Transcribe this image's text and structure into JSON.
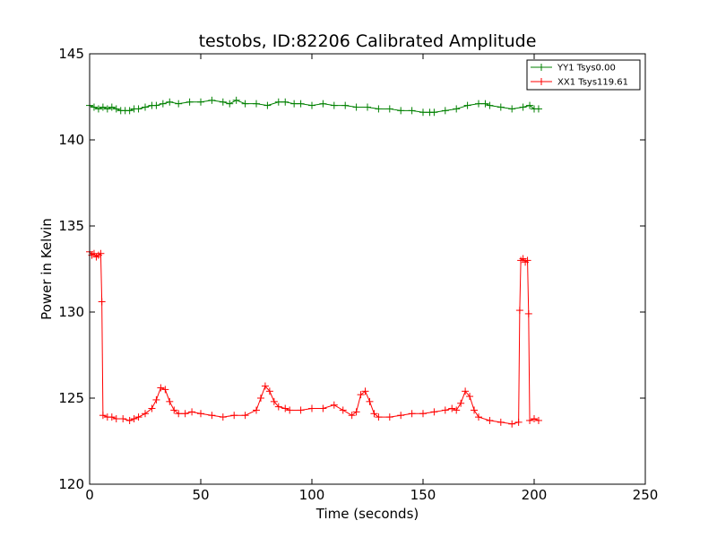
{
  "chart_data": {
    "type": "line",
    "title": "testobs, ID:82206 Calibrated Amplitude",
    "xlabel": "Time (seconds)",
    "ylabel": "Power in Kelvin",
    "xlim": [
      0,
      250
    ],
    "ylim": [
      120,
      145
    ],
    "xticks": [
      "0",
      "50",
      "100",
      "150",
      "200",
      "250"
    ],
    "yticks": [
      "120",
      "125",
      "130",
      "135",
      "140",
      "145"
    ],
    "grid": false,
    "legend_position": "top-right",
    "markers": "+",
    "series": [
      {
        "name": "YY1 Tsys0.00",
        "color": "#008000",
        "x": [
          0,
          2,
          4,
          6,
          8,
          10,
          12,
          14,
          16,
          18,
          20,
          22,
          25,
          28,
          30,
          33,
          36,
          40,
          45,
          50,
          55,
          60,
          63,
          66,
          70,
          75,
          80,
          85,
          88,
          92,
          95,
          100,
          105,
          110,
          115,
          120,
          125,
          130,
          135,
          140,
          145,
          150,
          153,
          155,
          160,
          165,
          170,
          175,
          178,
          180,
          185,
          190,
          195,
          198,
          200,
          202
        ],
        "values": [
          142.0,
          141.9,
          141.8,
          141.9,
          141.8,
          141.9,
          141.8,
          141.7,
          141.7,
          141.7,
          141.8,
          141.8,
          141.9,
          142.0,
          142.0,
          142.1,
          142.2,
          142.1,
          142.2,
          142.2,
          142.3,
          142.2,
          142.1,
          142.3,
          142.1,
          142.1,
          142.0,
          142.2,
          142.2,
          142.1,
          142.1,
          142.0,
          142.1,
          142.0,
          142.0,
          141.9,
          141.9,
          141.8,
          141.8,
          141.7,
          141.7,
          141.6,
          141.6,
          141.6,
          141.7,
          141.8,
          142.0,
          142.1,
          142.1,
          142.0,
          141.9,
          141.8,
          141.9,
          142.0,
          141.8,
          141.8
        ]
      },
      {
        "name": "XX1 Tsys119.61",
        "color": "#ff0000",
        "x": [
          0,
          1,
          2,
          3,
          4,
          5,
          5.5,
          6,
          8,
          10,
          12,
          15,
          18,
          20,
          22,
          25,
          28,
          30,
          32,
          34,
          36,
          38,
          40,
          43,
          46,
          50,
          55,
          60,
          65,
          70,
          75,
          77,
          79,
          81,
          83,
          85,
          88,
          90,
          95,
          100,
          105,
          110,
          114,
          118,
          120,
          122,
          124,
          126,
          128,
          130,
          135,
          140,
          145,
          150,
          155,
          160,
          163,
          165,
          167,
          169,
          171,
          173,
          175,
          180,
          185,
          190,
          193,
          193.5,
          194,
          195,
          196,
          197,
          197.5,
          198,
          200,
          202
        ],
        "values": [
          133.5,
          133.3,
          133.4,
          133.2,
          133.3,
          133.4,
          130.6,
          124.0,
          123.9,
          123.9,
          123.8,
          123.8,
          123.7,
          123.8,
          123.9,
          124.1,
          124.4,
          124.9,
          125.6,
          125.5,
          124.8,
          124.3,
          124.1,
          124.1,
          124.2,
          124.1,
          124.0,
          123.9,
          124.0,
          124.0,
          124.3,
          125.0,
          125.7,
          125.4,
          124.8,
          124.5,
          124.4,
          124.3,
          124.3,
          124.4,
          124.4,
          124.6,
          124.3,
          124.0,
          124.2,
          125.2,
          125.4,
          124.8,
          124.1,
          123.9,
          123.9,
          124.0,
          124.1,
          124.1,
          124.2,
          124.3,
          124.4,
          124.3,
          124.7,
          125.4,
          125.1,
          124.3,
          123.9,
          123.7,
          123.6,
          123.5,
          123.6,
          130.1,
          133.0,
          133.1,
          132.9,
          133.0,
          129.9,
          123.7,
          123.8,
          123.7
        ]
      }
    ]
  }
}
